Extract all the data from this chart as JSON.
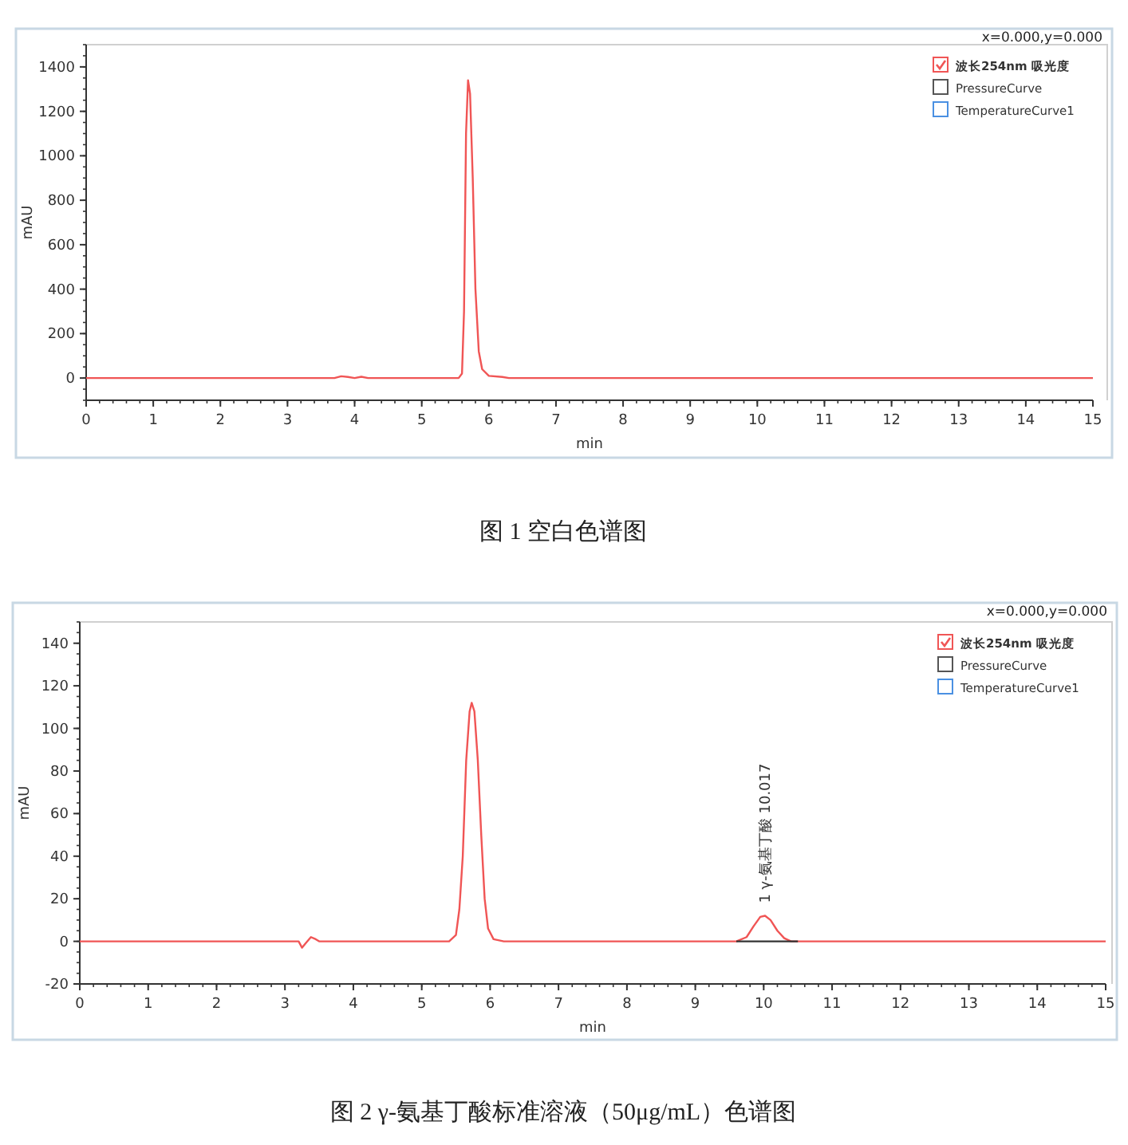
{
  "chart_data": [
    {
      "type": "line",
      "xlabel": "min",
      "ylabel": "mAU",
      "xlim": [
        0,
        15
      ],
      "ylim": [
        -100,
        1500
      ],
      "xticks": [
        0,
        1,
        2,
        3,
        4,
        5,
        6,
        7,
        8,
        9,
        10,
        11,
        12,
        13,
        14,
        15
      ],
      "yticks": [
        0,
        200,
        400,
        600,
        800,
        1000,
        1200,
        1400
      ],
      "legend": "top right",
      "series": [
        {
          "name": "波长254nm 吸光度",
          "color": "#f05555",
          "x": [
            0,
            3.7,
            3.8,
            3.9,
            4.0,
            4.1,
            4.2,
            5.55,
            5.6,
            5.63,
            5.66,
            5.69,
            5.72,
            5.76,
            5.8,
            5.85,
            5.9,
            6.0,
            6.2,
            6.3,
            15
          ],
          "values": [
            0,
            0,
            8,
            5,
            0,
            6,
            0,
            0,
            20,
            300,
            1100,
            1340,
            1280,
            900,
            400,
            120,
            40,
            10,
            5,
            0,
            0
          ]
        },
        {
          "name": "PressureCurve",
          "color": "#555555"
        },
        {
          "name": "TemperatureCurve1",
          "color": "#4a90e2"
        }
      ],
      "annotations": [
        "x=0.000,y=0.000",
        "图 1  空白色谱图"
      ]
    },
    {
      "type": "line",
      "xlabel": "min",
      "ylabel": "mAU",
      "xlim": [
        0,
        15
      ],
      "ylim": [
        -20,
        150
      ],
      "xticks": [
        0,
        1,
        2,
        3,
        4,
        5,
        6,
        7,
        8,
        9,
        10,
        11,
        12,
        13,
        14,
        15
      ],
      "yticks": [
        -20,
        0,
        20,
        40,
        60,
        80,
        100,
        120,
        140
      ],
      "legend": "top right",
      "series": [
        {
          "name": "波长254nm 吸光度",
          "color": "#f05555",
          "x": [
            0,
            3.2,
            3.25,
            3.3,
            3.38,
            3.45,
            3.5,
            5.4,
            5.5,
            5.55,
            5.6,
            5.65,
            5.7,
            5.73,
            5.77,
            5.82,
            5.87,
            5.92,
            5.97,
            6.05,
            6.2,
            9.6,
            9.75,
            9.85,
            9.95,
            10.02,
            10.1,
            10.2,
            10.3,
            10.4,
            15
          ],
          "values": [
            0,
            0,
            -3,
            -1,
            2,
            1,
            0,
            0,
            3,
            15,
            40,
            85,
            108,
            112,
            108,
            85,
            50,
            20,
            6,
            1,
            0,
            0,
            2,
            7,
            11.5,
            12,
            10,
            5,
            1.5,
            0,
            0
          ]
        },
        {
          "name": "PressureCurve",
          "color": "#555555"
        },
        {
          "name": "TemperatureCurve1",
          "color": "#4a90e2"
        },
        {
          "color": "#333333",
          "x": [
            9.6,
            10.5
          ],
          "values": [
            0,
            0
          ]
        }
      ],
      "annotations": [
        "x=0.000,y=0.000",
        {
          "text": "1  γ-氨基丁酸 10.017",
          "x": 10.017,
          "y": 12
        },
        "图 2 γ-氨基丁酸标准溶液（50μg/mL）色谱图"
      ]
    }
  ]
}
